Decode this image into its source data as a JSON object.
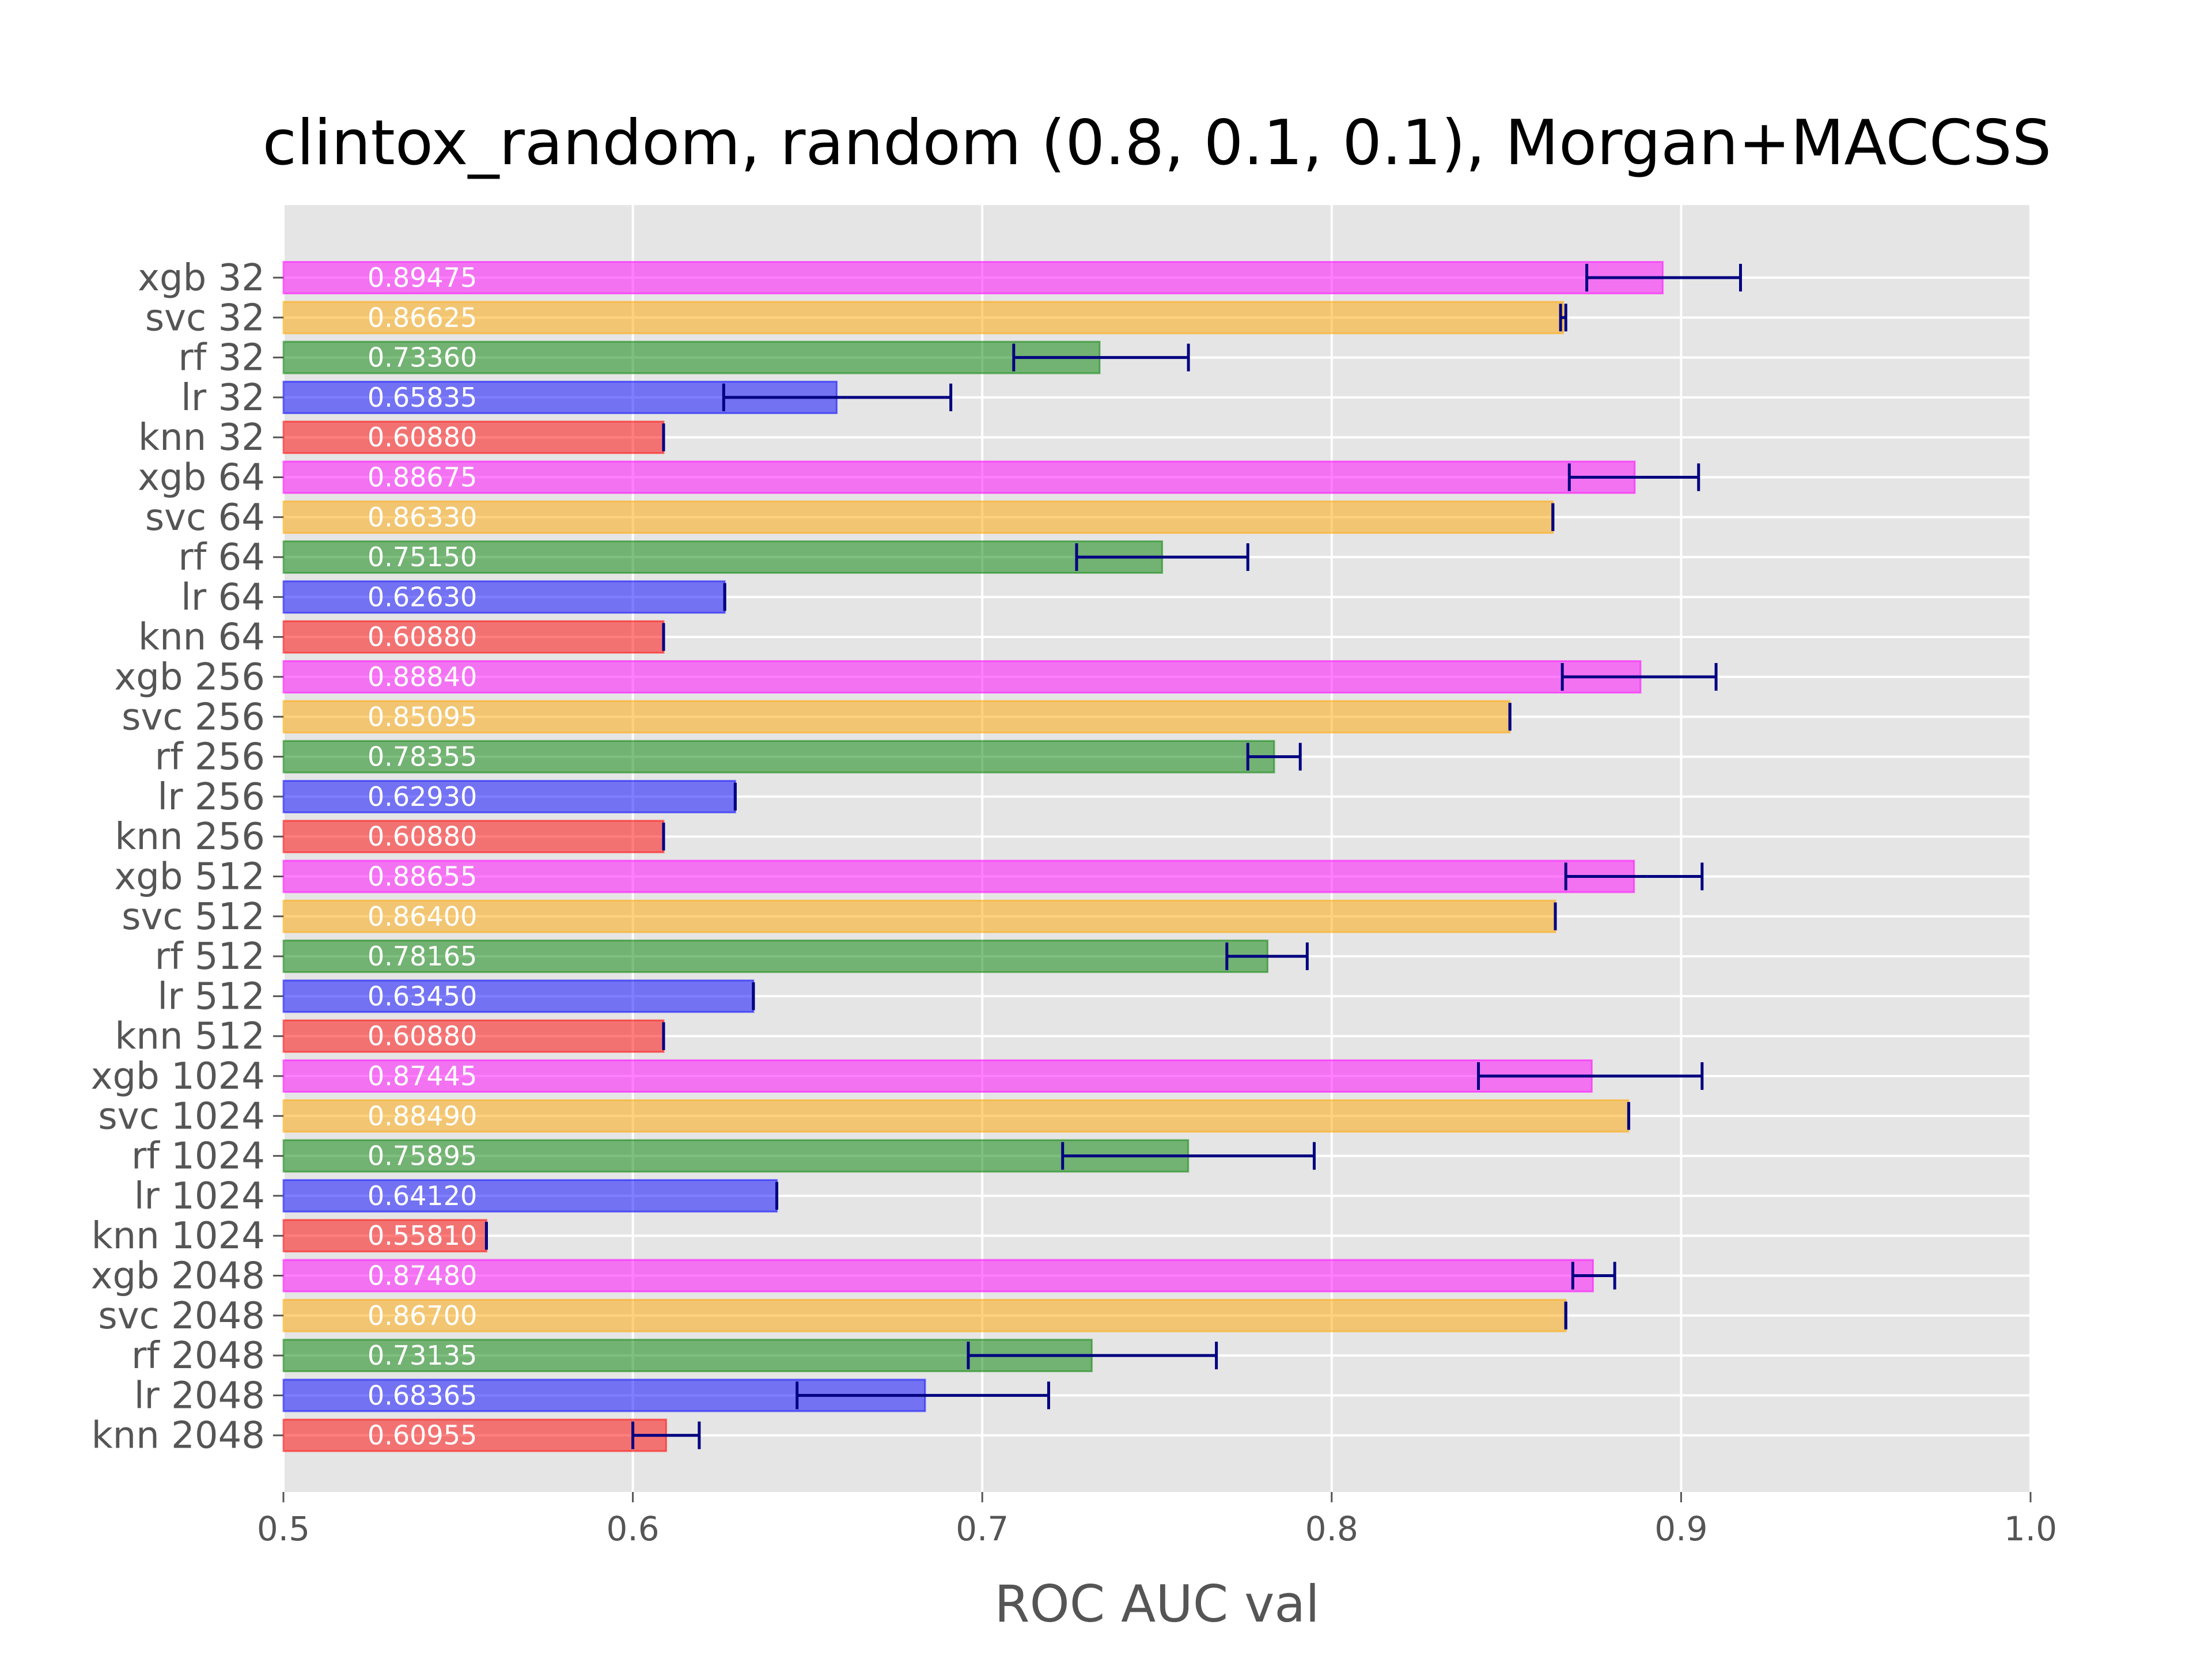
{
  "chart_data": {
    "type": "bar",
    "orientation": "horizontal",
    "title": "clintox_random, random (0.8, 0.1, 0.1), Morgan+MACCSS",
    "xlabel": "ROC AUC val",
    "ylabel": "",
    "xlim": [
      0.5,
      1.0
    ],
    "x_ticks": [
      "0.5",
      "0.6",
      "0.7",
      "0.8",
      "0.9",
      "1.0"
    ],
    "grid": true,
    "legend": "none",
    "colors": {
      "xgb": "#ff00ff",
      "svc": "#ffa500",
      "rf": "#008000",
      "lr": "#0000ff",
      "knn": "#ff0000",
      "errorbar": "#000080",
      "background": "#e5e5e5",
      "grid": "#ffffff",
      "tick_text": "#555555"
    },
    "bars": [
      {
        "label": "xgb 32",
        "model": "xgb",
        "value": 0.89475,
        "value_label": "0.89475",
        "err": [
          0.873,
          0.917
        ]
      },
      {
        "label": "svc 32",
        "model": "svc",
        "value": 0.86625,
        "value_label": "0.86625",
        "err": [
          0.8655,
          0.867
        ]
      },
      {
        "label": "rf 32",
        "model": "rf",
        "value": 0.7336,
        "value_label": "0.73360",
        "err": [
          0.709,
          0.759
        ]
      },
      {
        "label": "lr 32",
        "model": "lr",
        "value": 0.65835,
        "value_label": "0.65835",
        "err": [
          0.626,
          0.691
        ]
      },
      {
        "label": "knn 32",
        "model": "knn",
        "value": 0.6088,
        "value_label": "0.60880",
        "err": [
          0.6088,
          0.6088
        ]
      },
      {
        "label": "xgb 64",
        "model": "xgb",
        "value": 0.88675,
        "value_label": "0.88675",
        "err": [
          0.868,
          0.905
        ]
      },
      {
        "label": "svc 64",
        "model": "svc",
        "value": 0.8633,
        "value_label": "0.86330",
        "err": [
          0.8633,
          0.8633
        ]
      },
      {
        "label": "rf 64",
        "model": "rf",
        "value": 0.7515,
        "value_label": "0.75150",
        "err": [
          0.727,
          0.776
        ]
      },
      {
        "label": "lr 64",
        "model": "lr",
        "value": 0.6263,
        "value_label": "0.62630",
        "err": [
          0.6263,
          0.6263
        ]
      },
      {
        "label": "knn 64",
        "model": "knn",
        "value": 0.6088,
        "value_label": "0.60880",
        "err": [
          0.6088,
          0.6088
        ]
      },
      {
        "label": "xgb 256",
        "model": "xgb",
        "value": 0.8884,
        "value_label": "0.88840",
        "err": [
          0.866,
          0.91
        ]
      },
      {
        "label": "svc 256",
        "model": "svc",
        "value": 0.85095,
        "value_label": "0.85095",
        "err": [
          0.851,
          0.851
        ]
      },
      {
        "label": "rf 256",
        "model": "rf",
        "value": 0.78355,
        "value_label": "0.78355",
        "err": [
          0.776,
          0.791
        ]
      },
      {
        "label": "lr 256",
        "model": "lr",
        "value": 0.6293,
        "value_label": "0.62930",
        "err": [
          0.6293,
          0.6293
        ]
      },
      {
        "label": "knn 256",
        "model": "knn",
        "value": 0.6088,
        "value_label": "0.60880",
        "err": [
          0.6088,
          0.6088
        ]
      },
      {
        "label": "xgb 512",
        "model": "xgb",
        "value": 0.88655,
        "value_label": "0.88655",
        "err": [
          0.867,
          0.906
        ]
      },
      {
        "label": "svc 512",
        "model": "svc",
        "value": 0.864,
        "value_label": "0.86400",
        "err": [
          0.864,
          0.864
        ]
      },
      {
        "label": "rf 512",
        "model": "rf",
        "value": 0.78165,
        "value_label": "0.78165",
        "err": [
          0.77,
          0.793
        ]
      },
      {
        "label": "lr 512",
        "model": "lr",
        "value": 0.6345,
        "value_label": "0.63450",
        "err": [
          0.6345,
          0.6345
        ]
      },
      {
        "label": "knn 512",
        "model": "knn",
        "value": 0.6088,
        "value_label": "0.60880",
        "err": [
          0.6088,
          0.6088
        ]
      },
      {
        "label": "xgb 1024",
        "model": "xgb",
        "value": 0.87445,
        "value_label": "0.87445",
        "err": [
          0.842,
          0.906
        ]
      },
      {
        "label": "svc 1024",
        "model": "svc",
        "value": 0.8849,
        "value_label": "0.88490",
        "err": [
          0.885,
          0.885
        ]
      },
      {
        "label": "rf 1024",
        "model": "rf",
        "value": 0.75895,
        "value_label": "0.75895",
        "err": [
          0.723,
          0.795
        ]
      },
      {
        "label": "lr 1024",
        "model": "lr",
        "value": 0.6412,
        "value_label": "0.64120",
        "err": [
          0.6412,
          0.6412
        ]
      },
      {
        "label": "knn 1024",
        "model": "knn",
        "value": 0.5581,
        "value_label": "0.55810",
        "err": [
          0.5581,
          0.5581
        ]
      },
      {
        "label": "xgb 2048",
        "model": "xgb",
        "value": 0.8748,
        "value_label": "0.87480",
        "err": [
          0.869,
          0.881
        ]
      },
      {
        "label": "svc 2048",
        "model": "svc",
        "value": 0.867,
        "value_label": "0.86700",
        "err": [
          0.867,
          0.867
        ]
      },
      {
        "label": "rf 2048",
        "model": "rf",
        "value": 0.73135,
        "value_label": "0.73135",
        "err": [
          0.696,
          0.767
        ]
      },
      {
        "label": "lr 2048",
        "model": "lr",
        "value": 0.68365,
        "value_label": "0.68365",
        "err": [
          0.647,
          0.719
        ]
      },
      {
        "label": "knn 2048",
        "model": "knn",
        "value": 0.60955,
        "value_label": "0.60955",
        "err": [
          0.6,
          0.619
        ]
      }
    ]
  }
}
